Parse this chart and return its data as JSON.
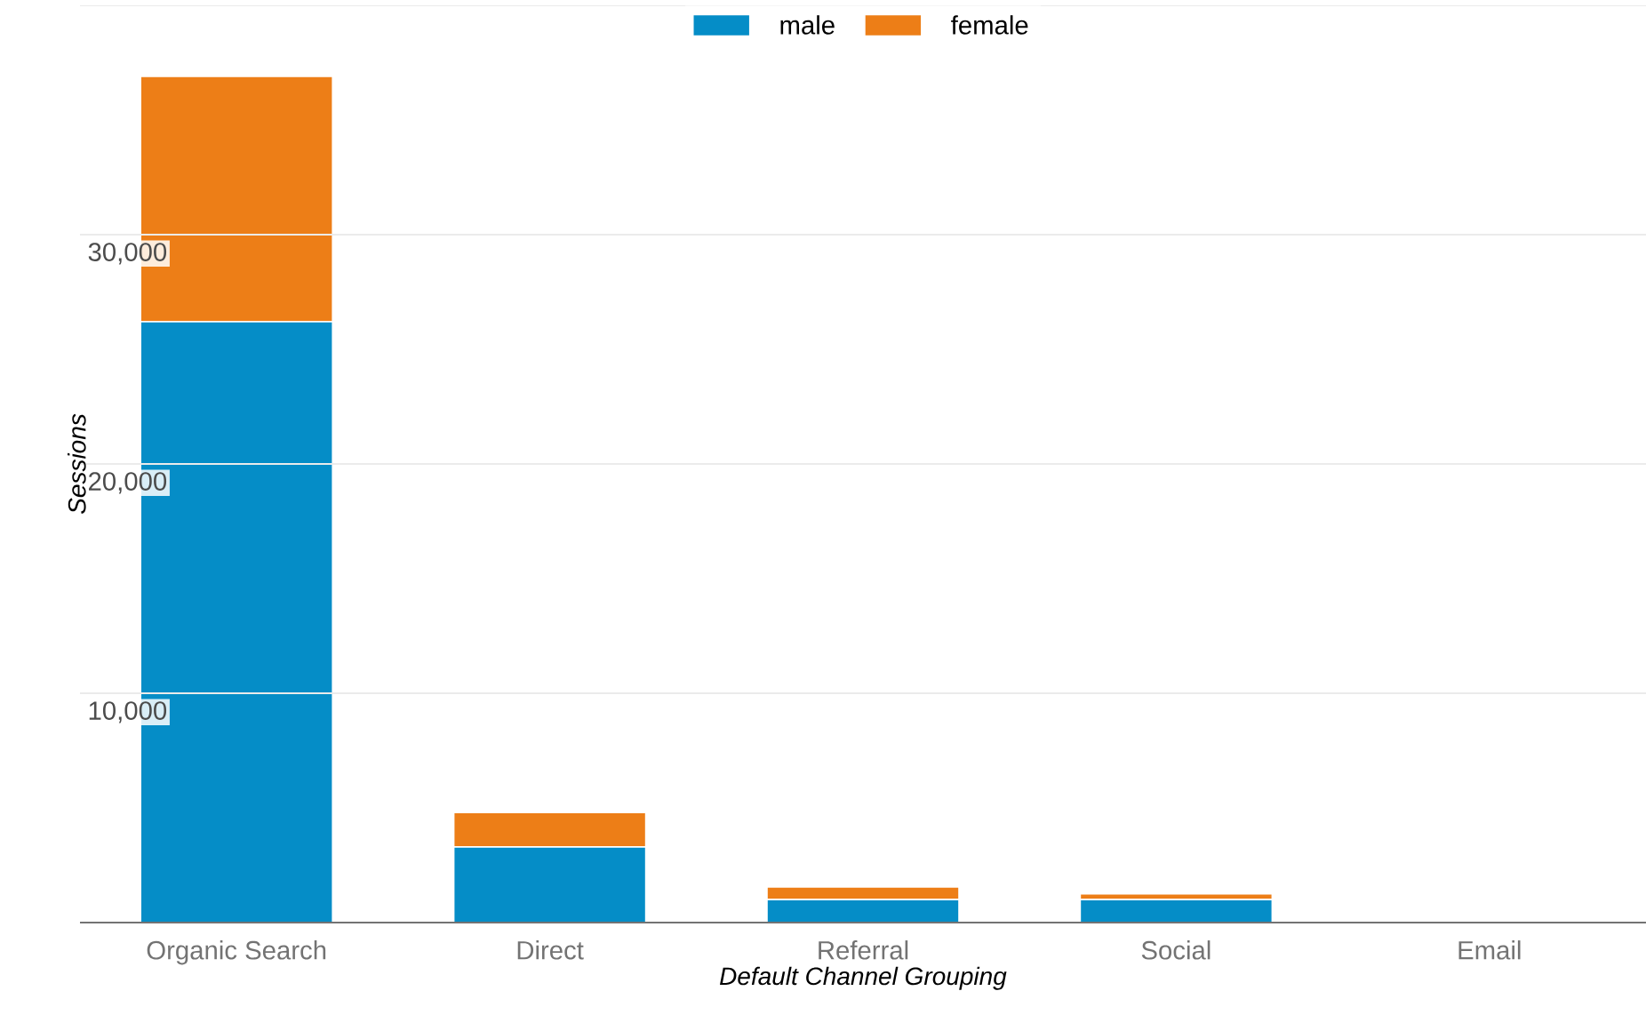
{
  "chart_data": {
    "type": "bar",
    "stacked": true,
    "xlabel": "Default Channel Grouping",
    "ylabel": "Sessions",
    "categories": [
      "Organic Search",
      "Direct",
      "Referral",
      "Social",
      "Email"
    ],
    "series": [
      {
        "name": "male",
        "color": "#058dc7",
        "values": [
          26200,
          3300,
          1000,
          1000,
          60
        ]
      },
      {
        "name": "female",
        "color": "#ed7e17",
        "values": [
          10700,
          1500,
          550,
          250,
          40
        ]
      }
    ],
    "ylim": [
      0,
      40000
    ],
    "yticks": [
      {
        "value": 10000,
        "label": "10,000"
      },
      {
        "value": 20000,
        "label": "20,000"
      },
      {
        "value": 30000,
        "label": "30,000"
      },
      {
        "value": 40000,
        "label": null
      }
    ],
    "grid": "y",
    "legend": "top"
  }
}
